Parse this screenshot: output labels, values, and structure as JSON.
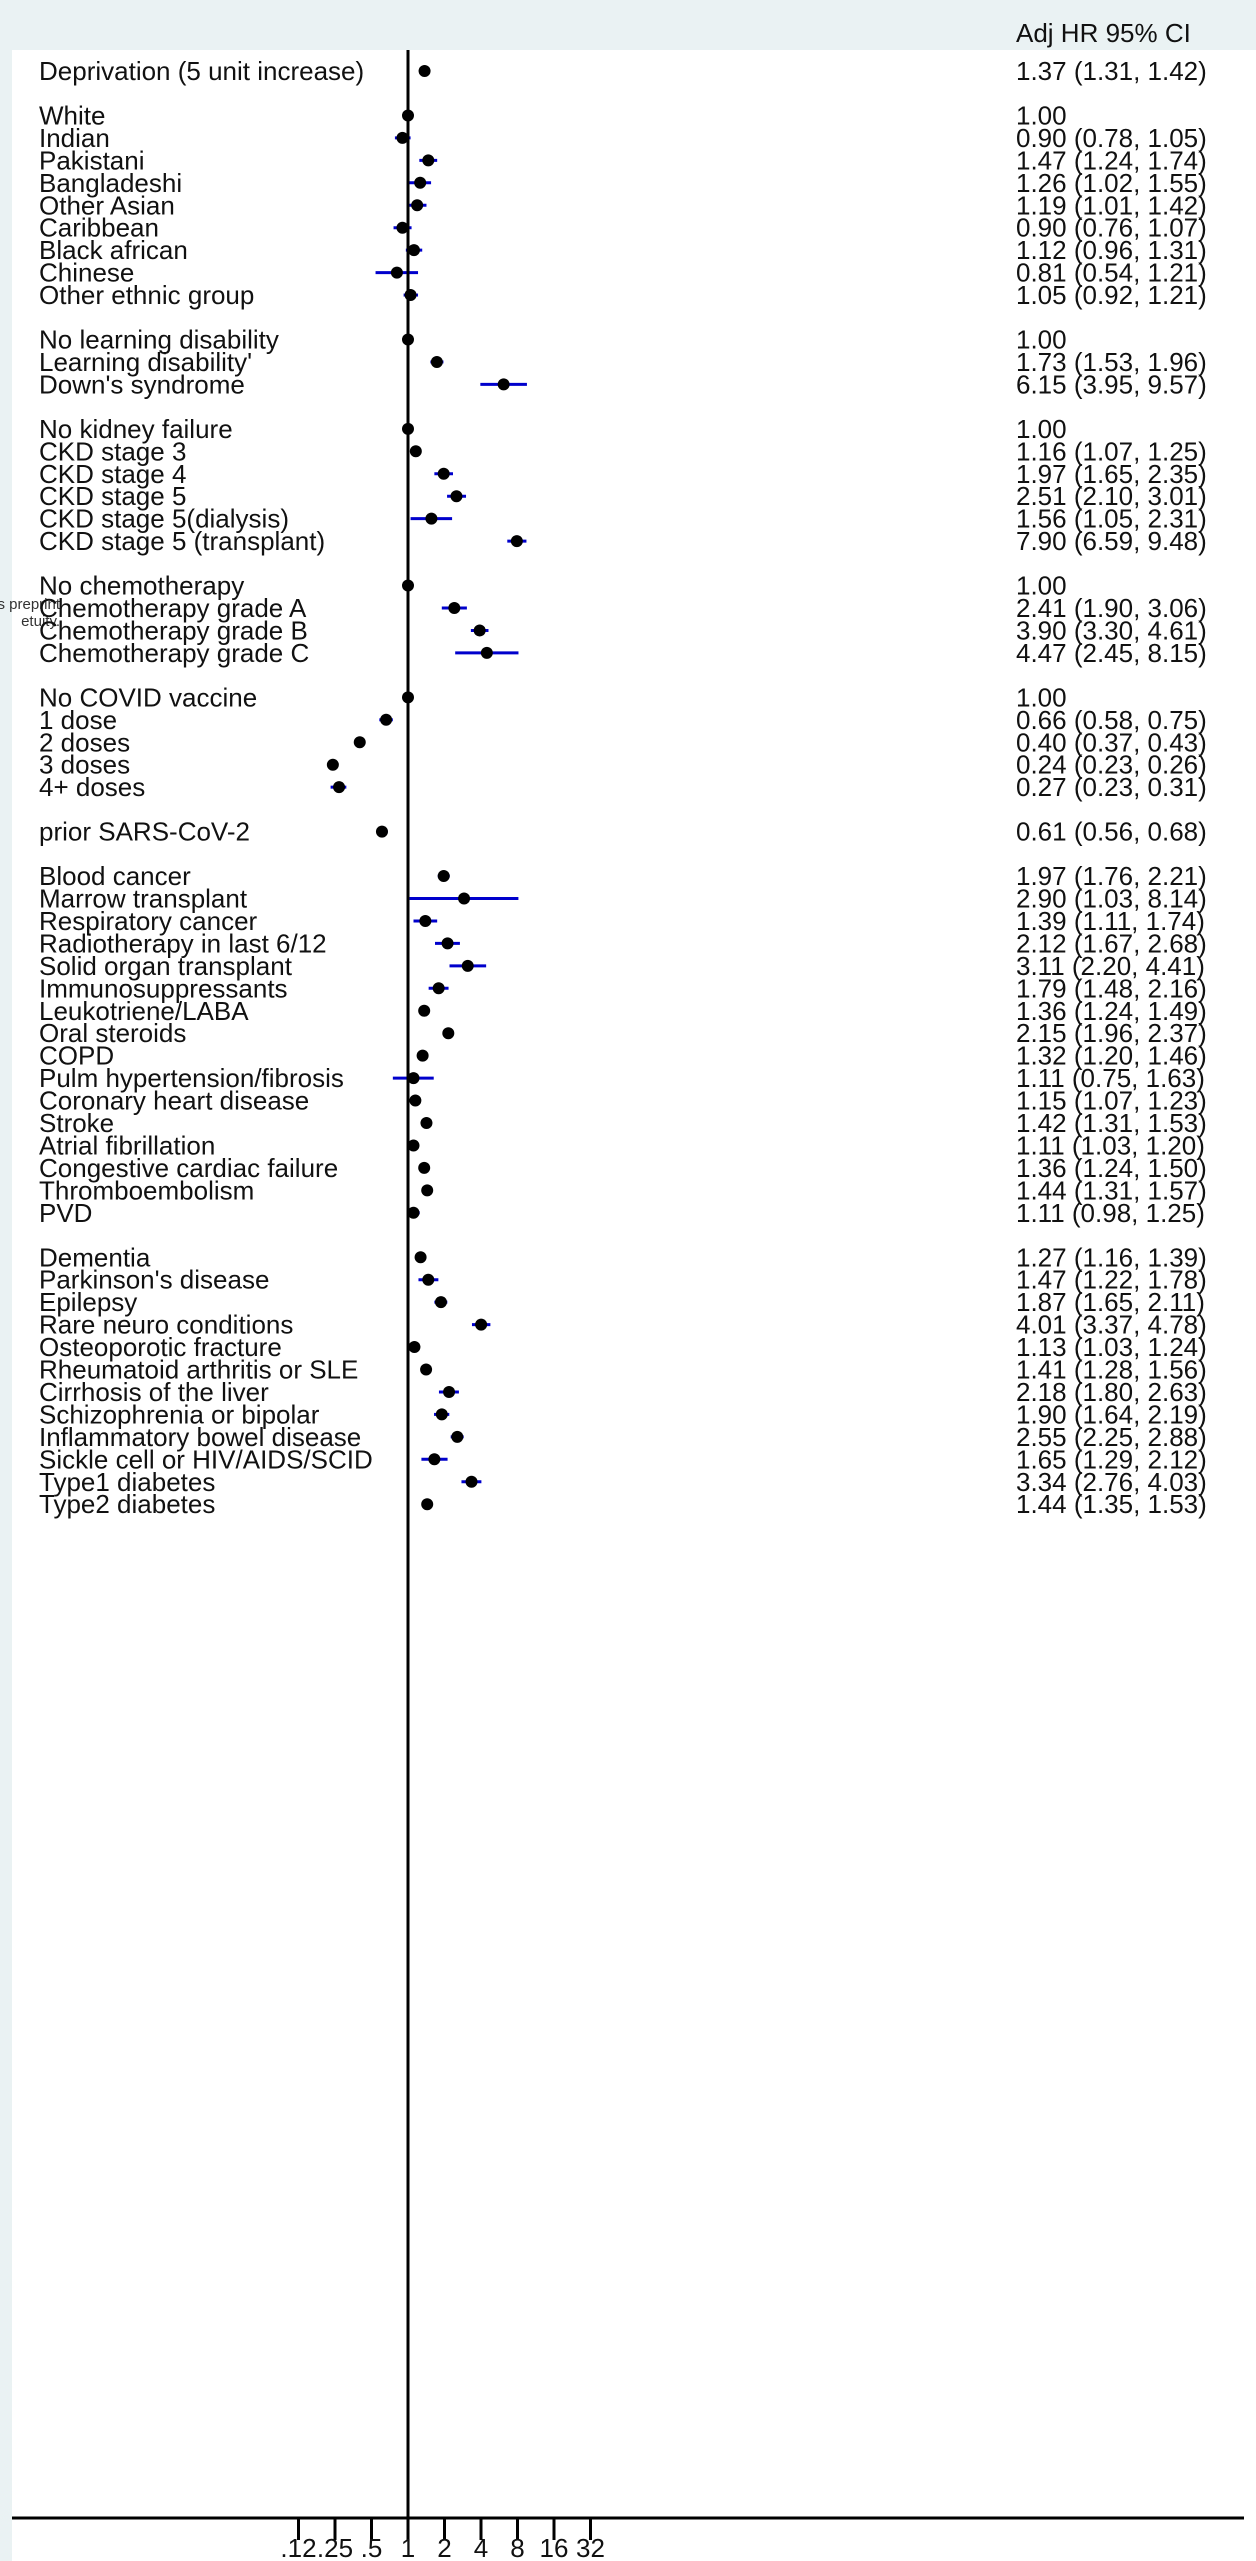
{
  "header": {
    "ci_title": "Adj HR 95% CI"
  },
  "watermark": {
    "line1": "s preprint",
    "line2": "etuity."
  },
  "chart_data": {
    "type": "forest",
    "xscale": "log2",
    "xlim": [
      0.12,
      32
    ],
    "reference_line": 1,
    "x_ticks": [
      ".12",
      ".25",
      ".5",
      "1",
      "2",
      "4",
      "8",
      "16",
      "32"
    ],
    "x_tick_values": [
      0.125,
      0.25,
      0.5,
      1,
      2,
      4,
      8,
      16,
      32
    ],
    "rows": [
      {
        "label": "Deprivation (5 unit increase)",
        "hr": 1.37,
        "lo": 1.31,
        "hi": 1.42,
        "text": "1.37 (1.31, 1.42)"
      },
      {
        "gap": true
      },
      {
        "label": "White",
        "hr": 1.0,
        "lo": null,
        "hi": null,
        "text": "1.00"
      },
      {
        "label": "Indian",
        "hr": 0.9,
        "lo": 0.78,
        "hi": 1.05,
        "text": "0.90 (0.78, 1.05)"
      },
      {
        "label": "Pakistani",
        "hr": 1.47,
        "lo": 1.24,
        "hi": 1.74,
        "text": "1.47 (1.24, 1.74)"
      },
      {
        "label": "Bangladeshi",
        "hr": 1.26,
        "lo": 1.02,
        "hi": 1.55,
        "text": "1.26 (1.02, 1.55)"
      },
      {
        "label": "Other Asian",
        "hr": 1.19,
        "lo": 1.01,
        "hi": 1.42,
        "text": "1.19 (1.01, 1.42)"
      },
      {
        "label": "Caribbean",
        "hr": 0.9,
        "lo": 0.76,
        "hi": 1.07,
        "text": "0.90 (0.76, 1.07)"
      },
      {
        "label": "Black african",
        "hr": 1.12,
        "lo": 0.96,
        "hi": 1.31,
        "text": "1.12 (0.96, 1.31)"
      },
      {
        "label": "Chinese",
        "hr": 0.81,
        "lo": 0.54,
        "hi": 1.21,
        "text": "0.81 (0.54, 1.21)"
      },
      {
        "label": "Other ethnic group",
        "hr": 1.05,
        "lo": 0.92,
        "hi": 1.21,
        "text": "1.05 (0.92, 1.21)"
      },
      {
        "gap": true
      },
      {
        "label": "No learning disability",
        "hr": 1.0,
        "lo": null,
        "hi": null,
        "text": "1.00"
      },
      {
        "label": "Learning disability'",
        "hr": 1.73,
        "lo": 1.53,
        "hi": 1.96,
        "text": "1.73 (1.53, 1.96)"
      },
      {
        "label": "Down's syndrome",
        "hr": 6.15,
        "lo": 3.95,
        "hi": 9.57,
        "text": "6.15 (3.95, 9.57)"
      },
      {
        "gap": true
      },
      {
        "label": "No kidney failure",
        "hr": 1.0,
        "lo": null,
        "hi": null,
        "text": "1.00"
      },
      {
        "label": "CKD stage 3",
        "hr": 1.16,
        "lo": 1.07,
        "hi": 1.25,
        "text": "1.16 (1.07, 1.25)"
      },
      {
        "label": "CKD stage 4",
        "hr": 1.97,
        "lo": 1.65,
        "hi": 2.35,
        "text": "1.97 (1.65, 2.35)"
      },
      {
        "label": "CKD stage 5",
        "hr": 2.51,
        "lo": 2.1,
        "hi": 3.01,
        "text": "2.51 (2.10, 3.01)"
      },
      {
        "label": "CKD stage 5(dialysis)",
        "hr": 1.56,
        "lo": 1.05,
        "hi": 2.31,
        "text": "1.56 (1.05, 2.31)"
      },
      {
        "label": "CKD stage 5 (transplant)",
        "hr": 7.9,
        "lo": 6.59,
        "hi": 9.48,
        "text": "7.90 (6.59, 9.48)"
      },
      {
        "gap": true
      },
      {
        "label": "No chemotherapy",
        "hr": 1.0,
        "lo": null,
        "hi": null,
        "text": "1.00"
      },
      {
        "label": "Chemotherapy grade A",
        "hr": 2.41,
        "lo": 1.9,
        "hi": 3.06,
        "text": "2.41 (1.90, 3.06)"
      },
      {
        "label": "Chemotherapy grade B",
        "hr": 3.9,
        "lo": 3.3,
        "hi": 4.61,
        "text": "3.90 (3.30, 4.61)"
      },
      {
        "label": "Chemotherapy grade C",
        "hr": 4.47,
        "lo": 2.45,
        "hi": 8.15,
        "text": "4.47 (2.45, 8.15)"
      },
      {
        "gap": true
      },
      {
        "label": "No COVID vaccine",
        "hr": 1.0,
        "lo": null,
        "hi": null,
        "text": "1.00"
      },
      {
        "label": "1 dose",
        "hr": 0.66,
        "lo": 0.58,
        "hi": 0.75,
        "text": "0.66 (0.58, 0.75)"
      },
      {
        "label": "2 doses",
        "hr": 0.4,
        "lo": 0.37,
        "hi": 0.43,
        "text": "0.40 (0.37, 0.43)"
      },
      {
        "label": "3 doses",
        "hr": 0.24,
        "lo": 0.23,
        "hi": 0.26,
        "text": "0.24 (0.23, 0.26)"
      },
      {
        "label": "4+ doses",
        "hr": 0.27,
        "lo": 0.23,
        "hi": 0.31,
        "text": "0.27 (0.23, 0.31)"
      },
      {
        "gap": true
      },
      {
        "label": "prior SARS-CoV-2",
        "hr": 0.61,
        "lo": 0.56,
        "hi": 0.68,
        "text": "0.61 (0.56, 0.68)"
      },
      {
        "gap": true
      },
      {
        "label": "Blood cancer",
        "hr": 1.97,
        "lo": 1.76,
        "hi": 2.21,
        "text": "1.97 (1.76, 2.21)"
      },
      {
        "label": "Marrow transplant",
        "hr": 2.9,
        "lo": 1.03,
        "hi": 8.14,
        "text": "2.90 (1.03, 8.14)"
      },
      {
        "label": "Respiratory cancer",
        "hr": 1.39,
        "lo": 1.11,
        "hi": 1.74,
        "text": "1.39 (1.11, 1.74)"
      },
      {
        "label": "Radiotherapy in last 6/12",
        "hr": 2.12,
        "lo": 1.67,
        "hi": 2.68,
        "text": "2.12 (1.67, 2.68)"
      },
      {
        "label": "Solid organ transplant",
        "hr": 3.11,
        "lo": 2.2,
        "hi": 4.41,
        "text": "3.11 (2.20, 4.41)"
      },
      {
        "label": "Immunosuppressants",
        "hr": 1.79,
        "lo": 1.48,
        "hi": 2.16,
        "text": "1.79 (1.48, 2.16)"
      },
      {
        "label": "Leukotriene/LABA",
        "hr": 1.36,
        "lo": 1.24,
        "hi": 1.49,
        "text": "1.36 (1.24, 1.49)"
      },
      {
        "label": "Oral steroids",
        "hr": 2.15,
        "lo": 1.96,
        "hi": 2.37,
        "text": "2.15 (1.96, 2.37)"
      },
      {
        "label": "COPD",
        "hr": 1.32,
        "lo": 1.2,
        "hi": 1.46,
        "text": "1.32 (1.20, 1.46)"
      },
      {
        "label": "Pulm hypertension/fibrosis",
        "hr": 1.11,
        "lo": 0.75,
        "hi": 1.63,
        "text": "1.11 (0.75, 1.63)"
      },
      {
        "label": "Coronary heart disease",
        "hr": 1.15,
        "lo": 1.07,
        "hi": 1.23,
        "text": "1.15 (1.07, 1.23)"
      },
      {
        "label": "Stroke",
        "hr": 1.42,
        "lo": 1.31,
        "hi": 1.53,
        "text": "1.42 (1.31, 1.53)"
      },
      {
        "label": "Atrial fibrillation",
        "hr": 1.11,
        "lo": 1.03,
        "hi": 1.2,
        "text": "1.11 (1.03, 1.20)"
      },
      {
        "label": "Congestive cardiac failure",
        "hr": 1.36,
        "lo": 1.24,
        "hi": 1.5,
        "text": "1.36 (1.24, 1.50)"
      },
      {
        "label": "Thromboembolism",
        "hr": 1.44,
        "lo": 1.31,
        "hi": 1.57,
        "text": "1.44 (1.31, 1.57)"
      },
      {
        "label": "PVD",
        "hr": 1.11,
        "lo": 0.98,
        "hi": 1.25,
        "text": "1.11 (0.98, 1.25)"
      },
      {
        "gap": true
      },
      {
        "label": "Dementia",
        "hr": 1.27,
        "lo": 1.16,
        "hi": 1.39,
        "text": "1.27 (1.16, 1.39)"
      },
      {
        "label": "Parkinson's disease",
        "hr": 1.47,
        "lo": 1.22,
        "hi": 1.78,
        "text": "1.47 (1.22, 1.78)"
      },
      {
        "label": "Epilepsy",
        "hr": 1.87,
        "lo": 1.65,
        "hi": 2.11,
        "text": "1.87 (1.65, 2.11)"
      },
      {
        "label": "Rare neuro conditions",
        "hr": 4.01,
        "lo": 3.37,
        "hi": 4.78,
        "text": "4.01 (3.37, 4.78)"
      },
      {
        "label": "Osteoporotic fracture",
        "hr": 1.13,
        "lo": 1.03,
        "hi": 1.24,
        "text": "1.13 (1.03, 1.24)"
      },
      {
        "label": "Rheumatoid arthritis or SLE",
        "hr": 1.41,
        "lo": 1.28,
        "hi": 1.56,
        "text": "1.41 (1.28, 1.56)"
      },
      {
        "label": "Cirrhosis of the liver",
        "hr": 2.18,
        "lo": 1.8,
        "hi": 2.63,
        "text": "2.18 (1.80, 2.63)"
      },
      {
        "label": "Schizophrenia or bipolar",
        "hr": 1.9,
        "lo": 1.64,
        "hi": 2.19,
        "text": "1.90 (1.64, 2.19)"
      },
      {
        "label": "Inflammatory bowel disease",
        "hr": 2.55,
        "lo": 2.25,
        "hi": 2.88,
        "text": "2.55 (2.25, 2.88)"
      },
      {
        "label": "Sickle cell or HIV/AIDS/SCID",
        "hr": 1.65,
        "lo": 1.29,
        "hi": 2.12,
        "text": "1.65 (1.29, 2.12)"
      },
      {
        "label": "Type1 diabetes",
        "hr": 3.34,
        "lo": 2.76,
        "hi": 4.03,
        "text": "3.34 (2.76, 4.03)"
      },
      {
        "label": "Type2 diabetes",
        "hr": 1.44,
        "lo": 1.35,
        "hi": 1.53,
        "text": "1.44 (1.35, 1.53)"
      }
    ],
    "colors": {
      "ci_line": "#0000cc",
      "point": "#000000",
      "axis": "#000000"
    }
  }
}
